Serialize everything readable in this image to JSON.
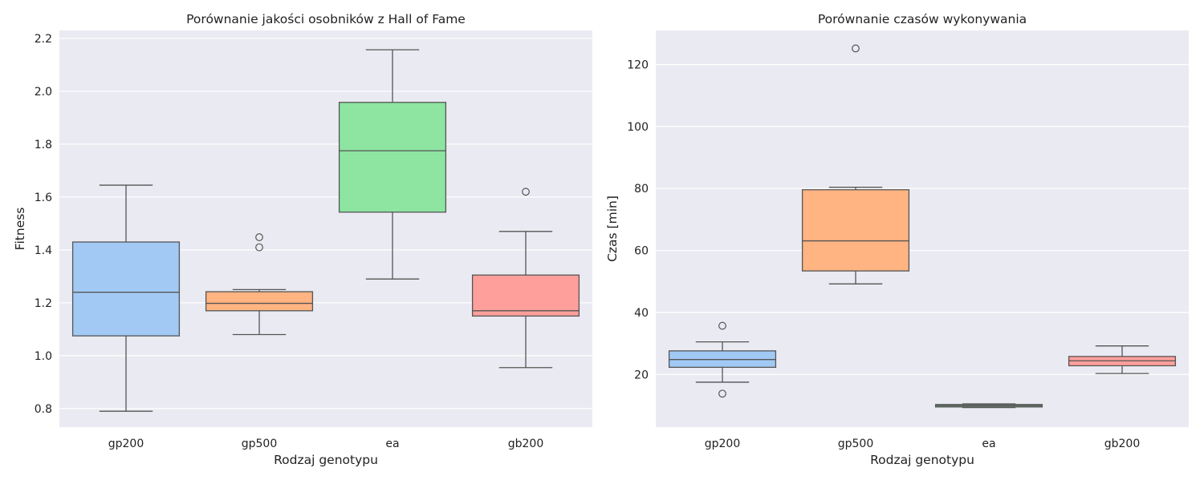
{
  "figure": {
    "title": ""
  },
  "chart_data": [
    {
      "type": "box",
      "title": "Porównanie jakości osobników z Hall of Fame",
      "xlabel": "Rodzaj genotypu",
      "ylabel": "Fitness",
      "categories": [
        "gp200",
        "gp500",
        "ea",
        "gb200"
      ],
      "colors": [
        "#a1c9f4",
        "#ffb482",
        "#8de5a1",
        "#ff9f9b"
      ],
      "ylim": [
        0.73,
        2.23
      ],
      "yticks": [
        0.8,
        1.0,
        1.2,
        1.4,
        1.6,
        1.8,
        2.0,
        2.2
      ],
      "ytick_labels": [
        "0.8",
        "1.0",
        "1.2",
        "1.4",
        "1.6",
        "1.8",
        "2.0",
        "2.2"
      ],
      "grid": true,
      "boxes": [
        {
          "category": "gp200",
          "whisker_low": 0.79,
          "q1": 1.075,
          "median": 1.24,
          "q3": 1.43,
          "whisker_high": 1.645,
          "outliers": []
        },
        {
          "category": "gp500",
          "whisker_low": 1.08,
          "q1": 1.17,
          "median": 1.198,
          "q3": 1.242,
          "whisker_high": 1.25,
          "outliers": [
            1.41,
            1.448
          ]
        },
        {
          "category": "ea",
          "whisker_low": 1.29,
          "q1": 1.543,
          "median": 1.775,
          "q3": 1.958,
          "whisker_high": 2.157,
          "outliers": []
        },
        {
          "category": "gb200",
          "whisker_low": 0.955,
          "q1": 1.15,
          "median": 1.17,
          "q3": 1.305,
          "whisker_high": 1.47,
          "outliers": [
            1.62
          ]
        }
      ]
    },
    {
      "type": "box",
      "title": "Porównanie czasów wykonywania",
      "xlabel": "Rodzaj genotypu",
      "ylabel": "Czas [min]",
      "categories": [
        "gp200",
        "gp500",
        "ea",
        "gb200"
      ],
      "colors": [
        "#a1c9f4",
        "#ffb482",
        "#8de5a1",
        "#ff9f9b"
      ],
      "ylim": [
        3,
        131
      ],
      "yticks": [
        20,
        40,
        60,
        80,
        100,
        120
      ],
      "ytick_labels": [
        "20",
        "40",
        "60",
        "80",
        "100",
        "120"
      ],
      "grid": true,
      "boxes": [
        {
          "category": "gp200",
          "whisker_low": 17.5,
          "q1": 22.3,
          "median": 24.8,
          "q3": 27.6,
          "whisker_high": 30.5,
          "outliers": [
            13.8,
            35.7
          ]
        },
        {
          "category": "gp500",
          "whisker_low": 49.2,
          "q1": 53.4,
          "median": 63.1,
          "q3": 79.6,
          "whisker_high": 80.4,
          "outliers": [
            125.2
          ]
        },
        {
          "category": "ea",
          "whisker_low": 9.3,
          "q1": 9.5,
          "median": 9.9,
          "q3": 10.3,
          "whisker_high": 10.5,
          "outliers": []
        },
        {
          "category": "gb200",
          "whisker_low": 20.3,
          "q1": 22.8,
          "median": 24.4,
          "q3": 25.8,
          "whisker_high": 29.2,
          "outliers": []
        }
      ]
    }
  ]
}
